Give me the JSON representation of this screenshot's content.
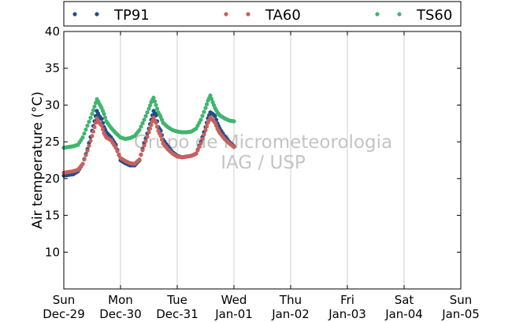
{
  "chart_data": {
    "type": "scatter",
    "title": "",
    "xlabel": "",
    "ylabel": "Air temperature (°C)",
    "ylim": [
      5,
      40
    ],
    "yticks": [
      10,
      15,
      20,
      25,
      30,
      35,
      40
    ],
    "xlim": [
      "2013-12-29T00:00",
      "2014-01-05T00:00"
    ],
    "xticks": [
      {
        "day": "Sun",
        "date": "Dec-29"
      },
      {
        "day": "Mon",
        "date": "Dec-30"
      },
      {
        "day": "Tue",
        "date": "Dec-31"
      },
      {
        "day": "Wed",
        "date": "Jan-01"
      },
      {
        "day": "Thu",
        "date": "Jan-02"
      },
      {
        "day": "Fri",
        "date": "Jan-03"
      },
      {
        "day": "Sat",
        "date": "Jan-04"
      },
      {
        "day": "Sun",
        "date": "Jan-05"
      }
    ],
    "grid": "vertical",
    "legend": "top",
    "watermark": [
      "Grupo de Micrometeorologia",
      "IAG / USP"
    ],
    "series": [
      {
        "name": "TP91",
        "color": "#1f4e8c",
        "x": [
          "2013-12-29T00:00",
          "2013-12-29T02:00",
          "2013-12-29T04:00",
          "2013-12-29T06:00",
          "2013-12-29T08:00",
          "2013-12-29T10:00",
          "2013-12-29T12:00",
          "2013-12-29T13:00",
          "2013-12-29T14:00",
          "2013-12-29T15:00",
          "2013-12-29T16:00",
          "2013-12-29T17:00",
          "2013-12-29T18:00",
          "2013-12-29T20:00",
          "2013-12-29T22:00",
          "2013-12-30T00:00",
          "2013-12-30T02:00",
          "2013-12-30T04:00",
          "2013-12-30T06:00",
          "2013-12-30T08:00",
          "2013-12-30T10:00",
          "2013-12-30T12:00",
          "2013-12-30T13:00",
          "2013-12-30T14:00",
          "2013-12-30T15:00",
          "2013-12-30T16:00",
          "2013-12-30T17:00",
          "2013-12-30T18:00",
          "2013-12-30T20:00",
          "2013-12-30T22:00",
          "2013-12-31T00:00",
          "2013-12-31T02:00",
          "2013-12-31T04:00",
          "2013-12-31T06:00",
          "2013-12-31T08:00",
          "2013-12-31T10:00",
          "2013-12-31T12:00",
          "2013-12-31T13:00",
          "2013-12-31T14:00",
          "2013-12-31T15:00",
          "2013-12-31T16:00",
          "2013-12-31T17:00",
          "2013-12-31T18:00",
          "2013-12-31T20:00",
          "2013-12-31T22:00",
          "2014-01-01T00:00"
        ],
        "values": [
          20.4,
          20.5,
          20.6,
          21.0,
          22.0,
          24.0,
          26.5,
          27.8,
          29.2,
          28.5,
          28.1,
          27.0,
          26.3,
          25.6,
          24.6,
          22.5,
          22.1,
          21.8,
          21.8,
          22.5,
          24.8,
          26.8,
          28.0,
          29.2,
          28.6,
          27.0,
          26.5,
          25.3,
          24.4,
          23.6,
          23.1,
          22.9,
          23.0,
          23.1,
          23.4,
          25.0,
          27.0,
          28.2,
          29.0,
          28.8,
          28.5,
          27.5,
          26.8,
          25.8,
          25.0,
          24.4
        ]
      },
      {
        "name": "TA60",
        "color": "#c8605c",
        "x": [
          "2013-12-29T00:00",
          "2013-12-29T02:00",
          "2013-12-29T04:00",
          "2013-12-29T06:00",
          "2013-12-29T08:00",
          "2013-12-29T10:00",
          "2013-12-29T12:00",
          "2013-12-29T13:00",
          "2013-12-29T14:00",
          "2013-12-29T15:00",
          "2013-12-29T16:00",
          "2013-12-29T17:00",
          "2013-12-29T18:00",
          "2013-12-29T20:00",
          "2013-12-29T22:00",
          "2013-12-30T00:00",
          "2013-12-30T02:00",
          "2013-12-30T04:00",
          "2013-12-30T06:00",
          "2013-12-30T08:00",
          "2013-12-30T10:00",
          "2013-12-30T12:00",
          "2013-12-30T13:00",
          "2013-12-30T14:00",
          "2013-12-30T15:00",
          "2013-12-30T16:00",
          "2013-12-30T17:00",
          "2013-12-30T18:00",
          "2013-12-30T20:00",
          "2013-12-30T22:00",
          "2013-12-31T00:00",
          "2013-12-31T02:00",
          "2013-12-31T04:00",
          "2013-12-31T06:00",
          "2013-12-31T08:00",
          "2013-12-31T10:00",
          "2013-12-31T12:00",
          "2013-12-31T13:00",
          "2013-12-31T14:00",
          "2013-12-31T15:00",
          "2013-12-31T16:00",
          "2013-12-31T17:00",
          "2013-12-31T18:00",
          "2013-12-31T20:00",
          "2013-12-31T22:00",
          "2014-01-01T00:00"
        ],
        "values": [
          20.8,
          20.9,
          21.0,
          21.2,
          22.0,
          23.8,
          25.8,
          27.0,
          28.2,
          27.6,
          27.2,
          26.2,
          25.6,
          25.2,
          24.2,
          22.8,
          22.4,
          22.1,
          22.0,
          22.6,
          24.5,
          26.3,
          27.3,
          28.3,
          27.6,
          26.5,
          25.8,
          24.8,
          24.0,
          23.4,
          23.0,
          22.9,
          23.0,
          23.1,
          23.4,
          24.8,
          26.6,
          27.6,
          28.3,
          28.0,
          27.6,
          26.8,
          26.2,
          25.4,
          24.8,
          24.3
        ]
      },
      {
        "name": "TS60",
        "color": "#3fb56e",
        "x": [
          "2013-12-29T00:00",
          "2013-12-29T02:00",
          "2013-12-29T04:00",
          "2013-12-29T06:00",
          "2013-12-29T08:00",
          "2013-12-29T10:00",
          "2013-12-29T12:00",
          "2013-12-29T13:00",
          "2013-12-29T14:00",
          "2013-12-29T15:00",
          "2013-12-29T16:00",
          "2013-12-29T17:00",
          "2013-12-29T18:00",
          "2013-12-29T20:00",
          "2013-12-29T22:00",
          "2013-12-30T00:00",
          "2013-12-30T02:00",
          "2013-12-30T04:00",
          "2013-12-30T06:00",
          "2013-12-30T08:00",
          "2013-12-30T10:00",
          "2013-12-30T12:00",
          "2013-12-30T13:00",
          "2013-12-30T14:00",
          "2013-12-30T15:00",
          "2013-12-30T16:00",
          "2013-12-30T17:00",
          "2013-12-30T18:00",
          "2013-12-30T20:00",
          "2013-12-30T22:00",
          "2013-12-31T00:00",
          "2013-12-31T02:00",
          "2013-12-31T04:00",
          "2013-12-31T06:00",
          "2013-12-31T08:00",
          "2013-12-31T10:00",
          "2013-12-31T12:00",
          "2013-12-31T13:00",
          "2013-12-31T14:00",
          "2013-12-31T15:00",
          "2013-12-31T16:00",
          "2013-12-31T17:00",
          "2013-12-31T18:00",
          "2013-12-31T20:00",
          "2013-12-31T22:00",
          "2014-01-01T00:00"
        ],
        "values": [
          24.2,
          24.3,
          24.4,
          24.6,
          25.6,
          27.2,
          28.8,
          29.8,
          30.8,
          30.2,
          29.6,
          28.8,
          27.8,
          26.9,
          26.2,
          25.6,
          25.4,
          25.5,
          25.8,
          26.6,
          28.0,
          29.5,
          30.4,
          31.0,
          30.0,
          29.0,
          28.4,
          27.6,
          27.0,
          26.6,
          26.4,
          26.3,
          26.3,
          26.4,
          26.8,
          28.0,
          29.6,
          30.6,
          31.3,
          30.4,
          29.6,
          29.0,
          28.6,
          28.2,
          27.9,
          27.8
        ]
      }
    ]
  }
}
